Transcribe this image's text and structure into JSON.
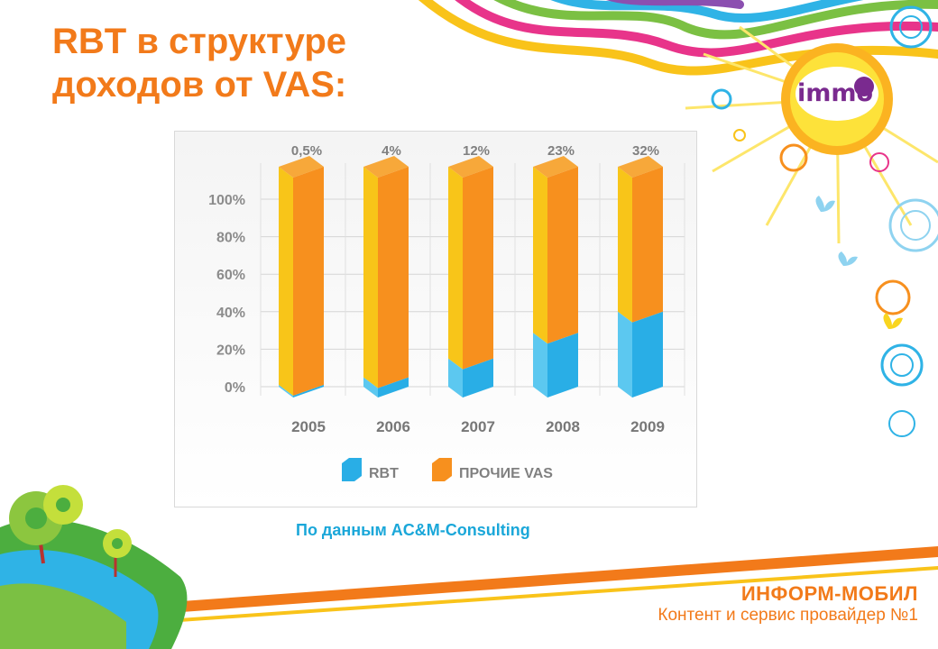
{
  "slide": {
    "title_line1": "RBT в структуре",
    "title_line2": "доходов от VAS:",
    "source": "По данным AC&M-Consulting",
    "company_name": "ИНФОРМ-МОБИЛ",
    "company_slogan": "Контент и сервис провайдер №1",
    "logo": "immo",
    "accent_color": "#f27a1a",
    "source_color": "#1aa7d9",
    "decorations": [
      "sun-icon",
      "butterfly-icon",
      "tree-icon",
      "hill"
    ]
  },
  "chart_data": {
    "type": "bar",
    "stacked": true,
    "categories": [
      "2005",
      "2006",
      "2007",
      "2008",
      "2009"
    ],
    "series": [
      {
        "name": "RBT",
        "values": [
          0.5,
          4,
          12,
          23,
          32
        ],
        "color": "#29aee6"
      },
      {
        "name": "ПРОЧИЕ VAS",
        "values": [
          99.5,
          96,
          88,
          77,
          68
        ],
        "color": "#f7901e"
      }
    ],
    "data_labels": [
      "0,5%",
      "4%",
      "12%",
      "23%",
      "32%"
    ],
    "yticks": [
      "0%",
      "20%",
      "40%",
      "60%",
      "80%",
      "100%"
    ],
    "ylim": [
      0,
      100
    ],
    "grid": true,
    "legend_position": "bottom"
  }
}
